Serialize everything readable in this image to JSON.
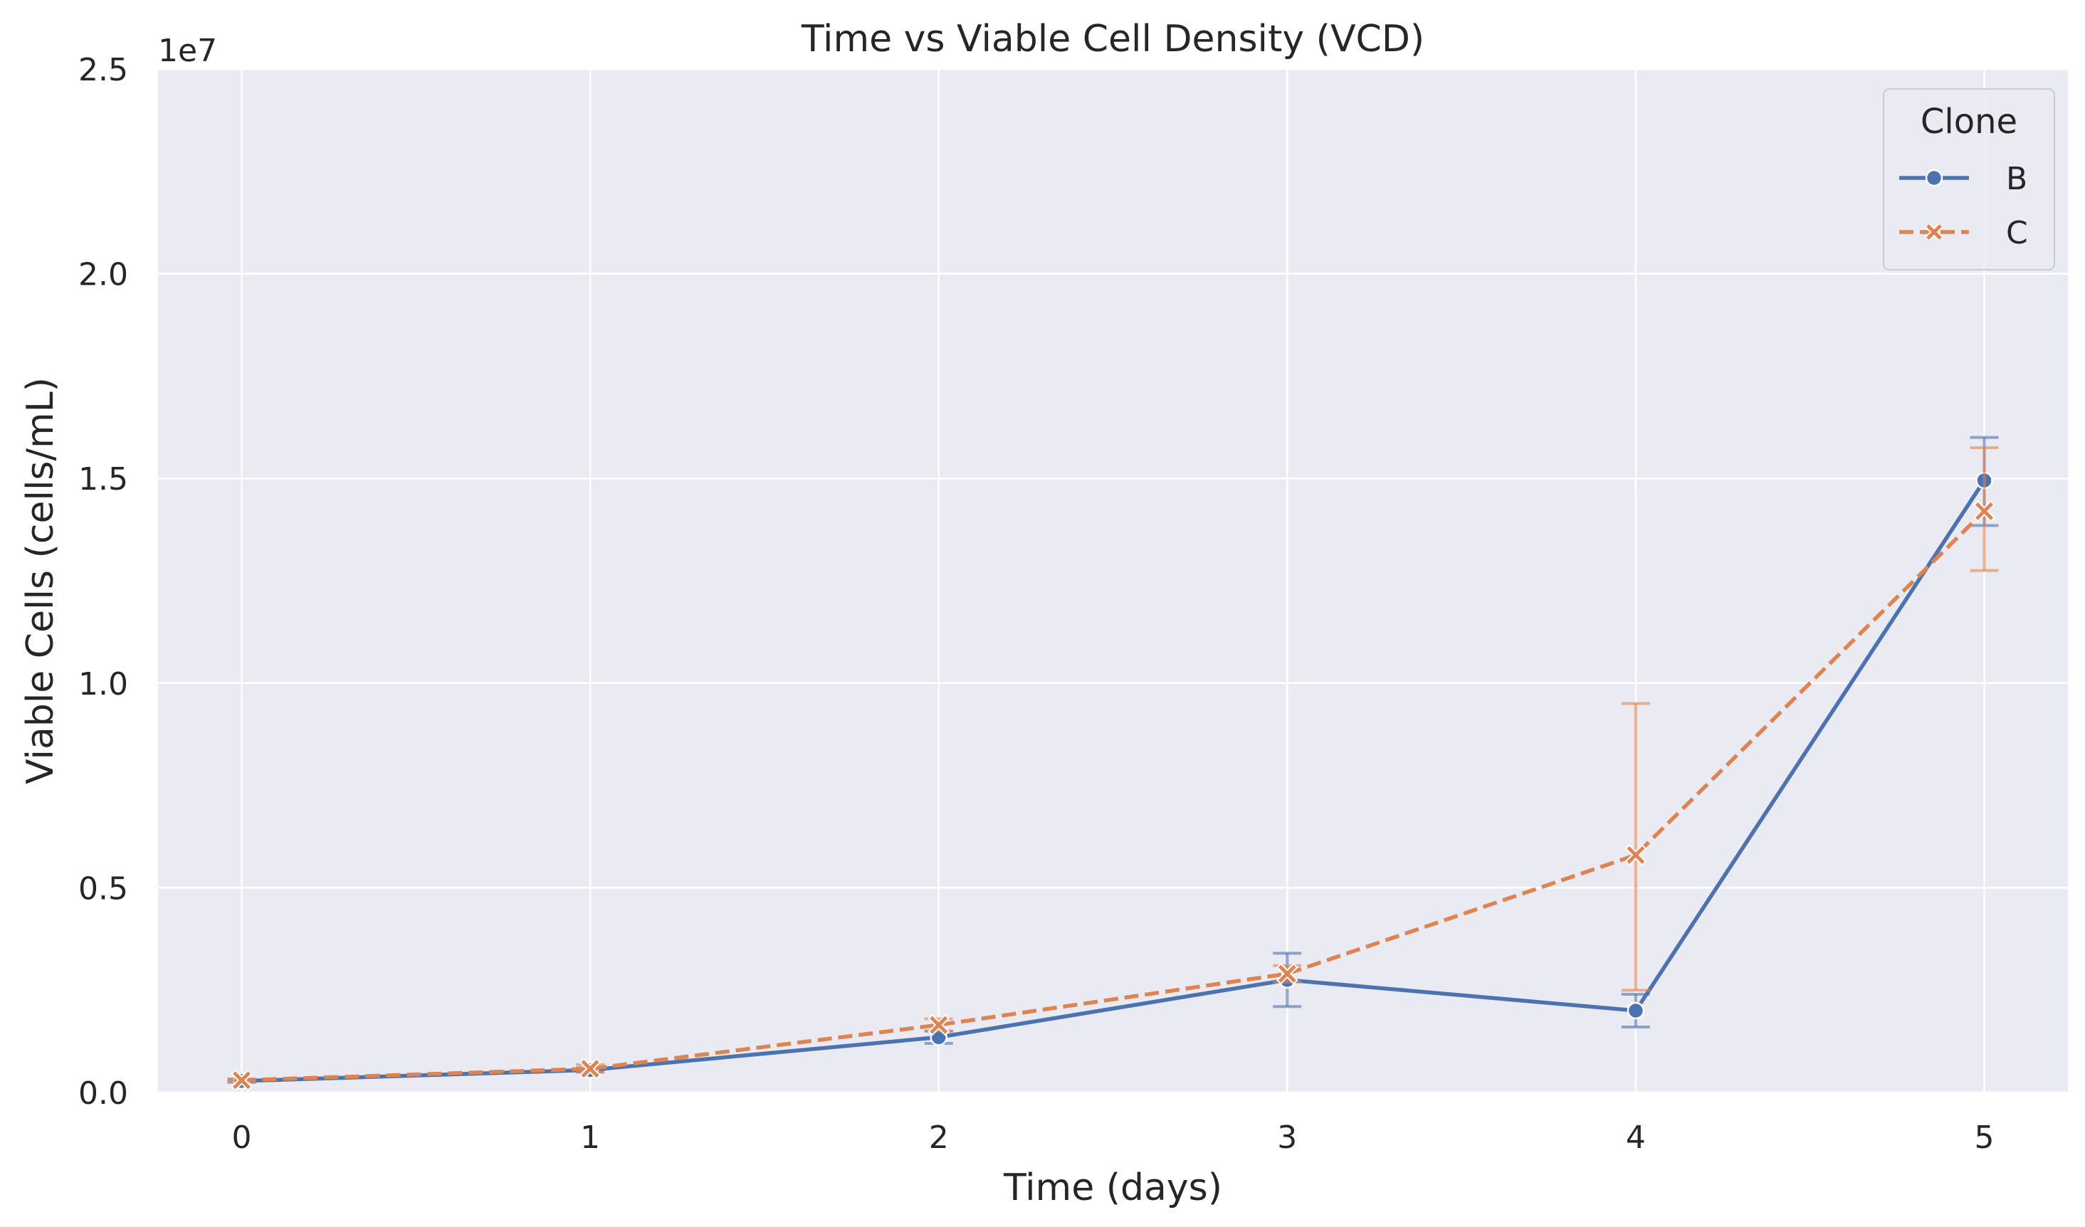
{
  "chart_data": {
    "type": "line",
    "title": "Time vs Viable Cell Density (VCD)",
    "xlabel": "Time (days)",
    "ylabel": "Viable Cells (cells/mL)",
    "y_offset_label": "1e7",
    "x": [
      0,
      1,
      2,
      3,
      4,
      5
    ],
    "x_tick_labels": [
      "0",
      "1",
      "2",
      "3",
      "4",
      "5"
    ],
    "xlim": [
      -0.24,
      5.24
    ],
    "ylim": [
      0,
      2.5
    ],
    "y_ticks": [
      0,
      0.5,
      1.0,
      1.5,
      2.0,
      2.5
    ],
    "y_tick_labels": [
      "0.0",
      "0.5",
      "1.0",
      "1.5",
      "2.0",
      "2.5"
    ],
    "grid": true,
    "legend": {
      "title": "Clone",
      "placement": "top-right"
    },
    "series": [
      {
        "name": "B",
        "color": "#4c72b0",
        "line_style": "solid",
        "marker": "circle",
        "values": [
          0.028,
          0.055,
          0.135,
          0.275,
          0.2,
          1.495
        ],
        "error_low": [
          0.025,
          0.05,
          0.12,
          0.21,
          0.16,
          1.385
        ],
        "error_high": [
          0.032,
          0.06,
          0.15,
          0.34,
          0.24,
          1.6
        ]
      },
      {
        "name": "C",
        "color": "#dd8452",
        "line_style": "dashed",
        "marker": "x",
        "values": [
          0.03,
          0.058,
          0.165,
          0.29,
          0.58,
          1.42
        ],
        "error_low": [
          0.027,
          0.05,
          0.15,
          0.27,
          0.25,
          1.275
        ],
        "error_high": [
          0.033,
          0.068,
          0.18,
          0.31,
          0.95,
          1.575
        ]
      }
    ],
    "colors": {
      "plot_background": "#eaeaf2",
      "grid": "#ffffff",
      "text": "#262626"
    }
  }
}
